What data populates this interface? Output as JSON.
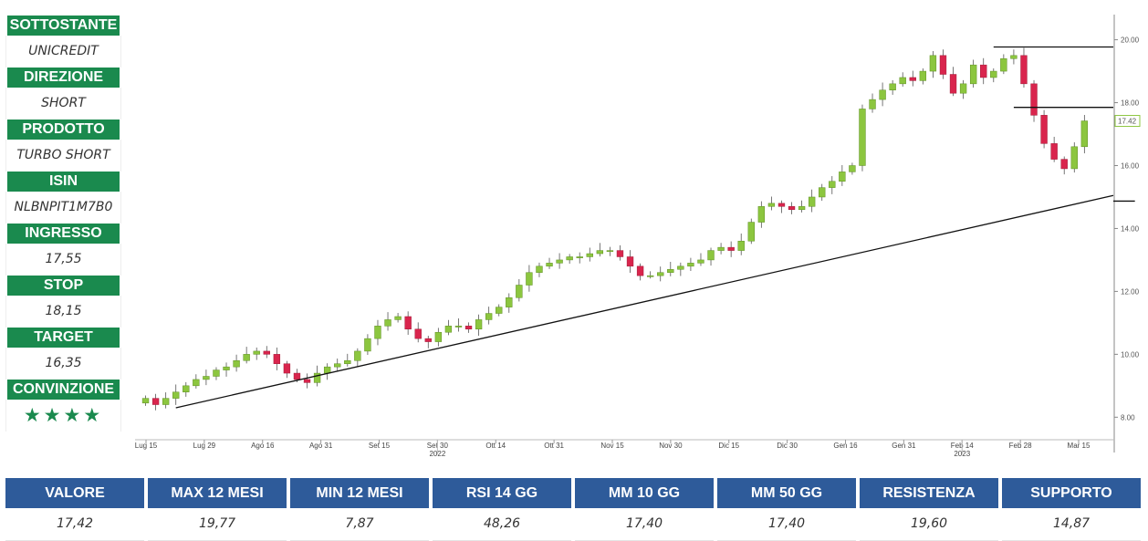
{
  "panel": [
    {
      "label": "SOTTOSTANTE",
      "value": "UNICREDIT"
    },
    {
      "label": "DIREZIONE",
      "value": "SHORT"
    },
    {
      "label": "PRODOTTO",
      "value": "TURBO SHORT"
    },
    {
      "label": "ISIN",
      "value": "NLBNPIT1M7B0"
    },
    {
      "label": "INGRESSO",
      "value": "17,55"
    },
    {
      "label": "STOP",
      "value": "18,15"
    },
    {
      "label": "TARGET",
      "value": "16,35"
    },
    {
      "label": "CONVINZIONE",
      "value": "★★★★"
    }
  ],
  "stats": [
    {
      "label": "VALORE",
      "value": "17,42"
    },
    {
      "label": "MAX 12 MESI",
      "value": "19,77"
    },
    {
      "label": "MIN 12 MESI",
      "value": "7,87"
    },
    {
      "label": "RSI 14 GG",
      "value": "48,26"
    },
    {
      "label": "MM 10 GG",
      "value": "17,40"
    },
    {
      "label": "MM 50 GG",
      "value": "17,40"
    },
    {
      "label": "RESISTENZA",
      "value": "19,60"
    },
    {
      "label": "SUPPORTO",
      "value": "14,87"
    }
  ],
  "colors": {
    "up": "#8cc63f",
    "down": "#d9254d",
    "label_green": "#1a8a4e",
    "header_blue": "#2e5b9a"
  },
  "chart_data": {
    "type": "candlestick",
    "ylim": [
      7.4,
      20.8
    ],
    "y_ticks": [
      "8.00",
      "10.00",
      "12.00",
      "14.00",
      "16.00",
      "18.00",
      "20.00"
    ],
    "x_ticks": [
      "Lug 15",
      "Lug 29",
      "Ago 16",
      "Ago 31",
      "Set 15",
      "Set 30",
      "Ott 14",
      "Ott 31",
      "Nov 15",
      "Nov 30",
      "Dic 15",
      "Dic 30",
      "Gen 16",
      "Gen 31",
      "Feb 14",
      "Feb 28",
      "Mar 15"
    ],
    "year_labels": [
      {
        "text": "2022",
        "at": "Set 30"
      },
      {
        "text": "2023",
        "at": "Feb 14"
      }
    ],
    "last_price_label": "17.42",
    "last_price": 17.42,
    "closes": [
      8.6,
      8.4,
      8.6,
      8.8,
      9.0,
      9.2,
      9.3,
      9.5,
      9.6,
      9.8,
      10.0,
      10.1,
      10.0,
      9.7,
      9.4,
      9.2,
      9.1,
      9.4,
      9.6,
      9.7,
      9.8,
      10.1,
      10.5,
      10.9,
      11.1,
      11.2,
      10.8,
      10.5,
      10.4,
      10.7,
      10.9,
      10.9,
      10.8,
      11.1,
      11.3,
      11.5,
      11.8,
      12.2,
      12.6,
      12.8,
      12.9,
      13.0,
      13.1,
      13.1,
      13.2,
      13.3,
      13.3,
      13.1,
      12.8,
      12.5,
      12.5,
      12.6,
      12.7,
      12.8,
      12.9,
      13.0,
      13.3,
      13.4,
      13.3,
      13.6,
      14.2,
      14.7,
      14.8,
      14.7,
      14.6,
      14.7,
      15.0,
      15.3,
      15.5,
      15.8,
      16.0,
      17.8,
      18.1,
      18.4,
      18.6,
      18.8,
      18.7,
      19.0,
      19.5,
      18.9,
      18.3,
      18.6,
      19.2,
      18.8,
      19.0,
      19.4,
      19.5,
      18.6,
      17.6,
      16.7,
      16.2,
      15.9,
      16.6,
      17.42
    ],
    "trendline": {
      "start": {
        "index": 3,
        "value": 8.3
      },
      "end": {
        "index": 101,
        "value": 15.05
      }
    },
    "resistance_lines": [
      {
        "value": 19.77,
        "from_index": 84
      },
      {
        "value": 17.85,
        "from_index": 86
      },
      {
        "value": 14.87,
        "from_index": 98
      }
    ]
  }
}
